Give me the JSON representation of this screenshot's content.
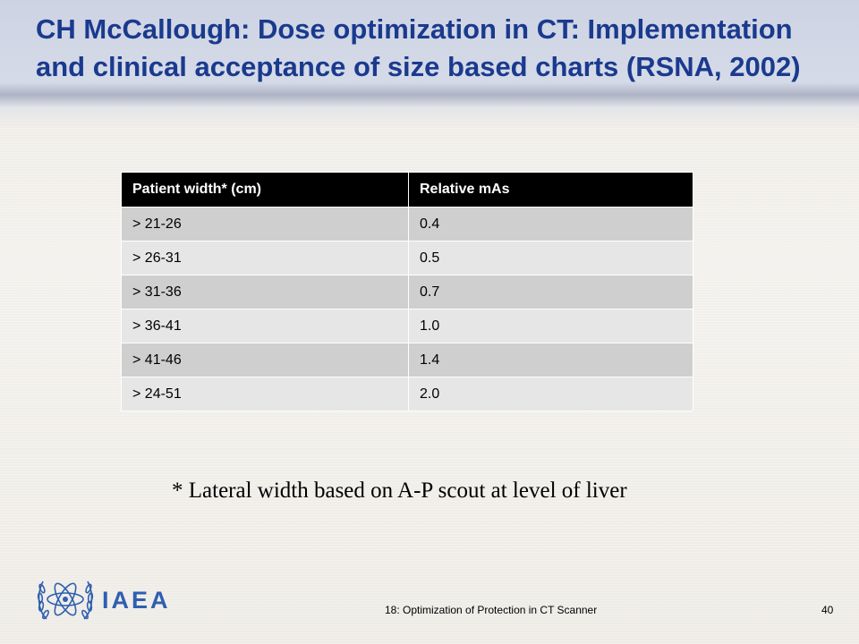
{
  "slide": {
    "title": "CH McCallough: Dose optimization in CT: Implementation and clinical acceptance of size based charts (RSNA, 2002)"
  },
  "table": {
    "headers": [
      "Patient width* (cm)",
      "Relative mAs"
    ],
    "rows": [
      [
        "> 21-26",
        "0.4"
      ],
      [
        "> 26-31",
        "0.5"
      ],
      [
        "> 31-36",
        "0.7"
      ],
      [
        "> 36-41",
        "1.0"
      ],
      [
        "> 41-46",
        "1.4"
      ],
      [
        "> 24-51",
        "2.0"
      ]
    ]
  },
  "footnote": "* Lateral width based on A-P scout at level of liver",
  "footer": {
    "logo_text": "IAEA",
    "logo_icon": "un-emblem-icon",
    "course_text": "18: Optimization of Protection in CT Scanner",
    "page_number": "40"
  },
  "colors": {
    "title": "#1a3a8e",
    "header_bg": "#000000",
    "row_dark": "#cfcfcf",
    "row_light": "#e6e6e6",
    "logo": "#2f5fb0"
  }
}
